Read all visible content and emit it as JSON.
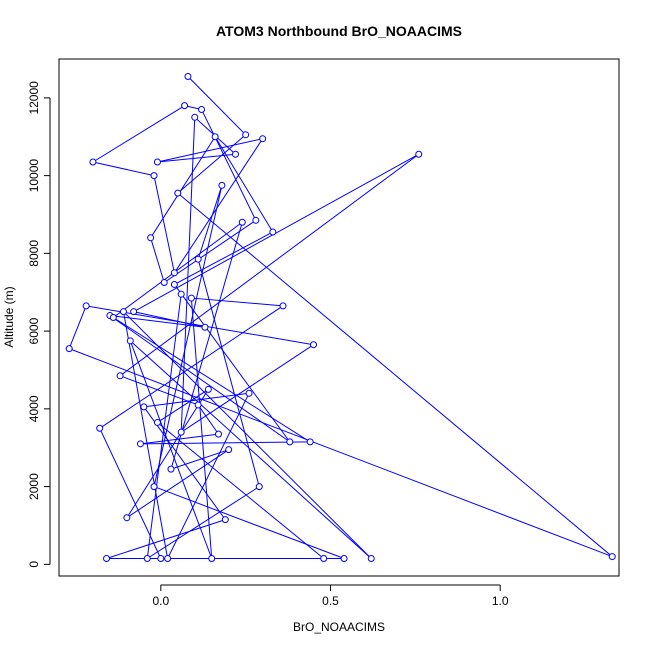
{
  "chart_data": {
    "type": "line",
    "title": "ATOM3 Northbound BrO_NOAACIMS",
    "xlabel": "BrO_NOAACIMS",
    "ylabel": "Altitude (m)",
    "xlim": [
      -0.3,
      1.35
    ],
    "ylim": [
      -300,
      13000
    ],
    "xticks": [
      0.0,
      0.5,
      1.0
    ],
    "xtick_labels": [
      "0.0",
      "0.5",
      "1.0"
    ],
    "yticks": [
      0,
      2000,
      4000,
      6000,
      8000,
      10000,
      12000
    ],
    "ytick_labels": [
      "0",
      "2000",
      "4000",
      "6000",
      "8000",
      "10000",
      "12000"
    ],
    "grid": false,
    "color": "#0000ff",
    "marker": "open-circle",
    "series": [
      {
        "x": [
          0.08,
          0.25,
          0.05,
          1.33,
          -0.27,
          -0.22,
          0.45,
          0.06,
          0.1,
          0.22,
          -0.01,
          0.3,
          0.04,
          -0.02,
          -0.2,
          0.07,
          0.12,
          0.28,
          0.01,
          -0.03,
          0.16,
          0.33,
          0.04,
          0.38,
          -0.15,
          0.13,
          -0.08,
          0.76,
          -0.12,
          0.11,
          0.17,
          -0.06,
          0.44,
          -0.14,
          0.24,
          0.03,
          0.2,
          -0.1,
          0.14,
          -0.01,
          0.48,
          -0.16,
          0.19,
          -0.05,
          0.26,
          0.02,
          -0.11,
          0.62,
          -0.09,
          0.15,
          0.09,
          0.36,
          -0.18,
          0.0,
          0.54,
          -0.02,
          0.18,
          0.11,
          0.29,
          -0.04,
          0.06
        ],
        "y": [
          12550,
          11050,
          9550,
          200,
          5550,
          6650,
          5650,
          3400,
          11500,
          10550,
          10350,
          10950,
          7500,
          10000,
          10350,
          11800,
          11700,
          8850,
          7250,
          8400,
          11000,
          8550,
          7200,
          3150,
          6400,
          6100,
          6500,
          10550,
          4850,
          4100,
          3350,
          3100,
          3150,
          6350,
          8800,
          2450,
          2950,
          1200,
          4500,
          3650,
          150,
          150,
          1150,
          4050,
          4400,
          150,
          6500,
          150,
          5750,
          150,
          6850,
          6650,
          3500,
          150,
          150,
          2000,
          9750,
          7850,
          2000,
          150,
          6950
        ]
      }
    ]
  }
}
